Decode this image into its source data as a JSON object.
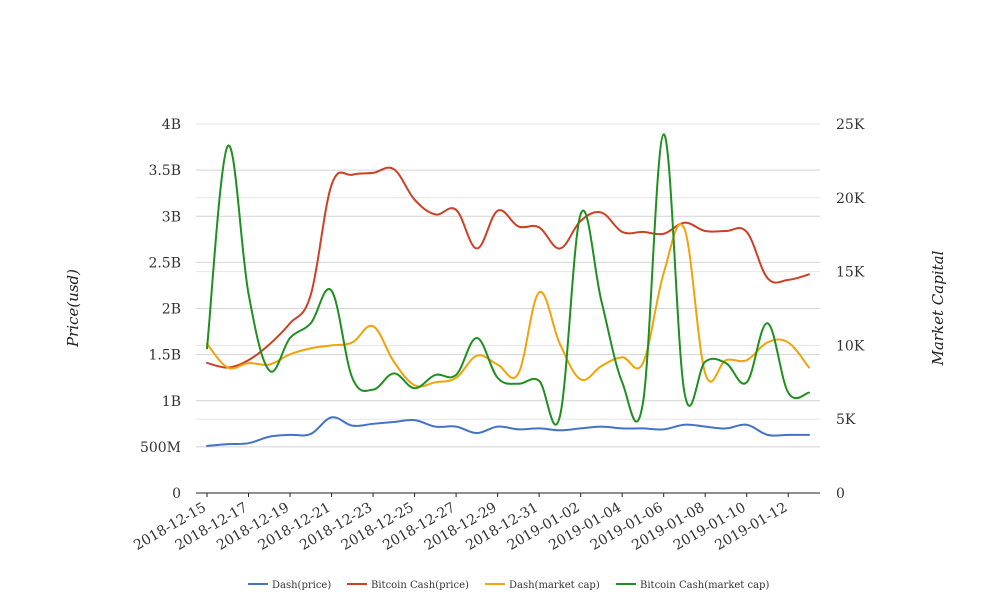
{
  "chart_data": {
    "type": "line",
    "title": "",
    "xlabel": "",
    "ylabel": "Price(usd)",
    "y2label": "Market Capital",
    "ylim": [
      0,
      4000000000
    ],
    "y2lim": [
      0,
      25000
    ],
    "yticks": [
      {
        "value": 0,
        "label": "0"
      },
      {
        "value": 500000000,
        "label": "500M"
      },
      {
        "value": 1000000000,
        "label": "1B"
      },
      {
        "value": 1500000000,
        "label": "1.5B"
      },
      {
        "value": 2000000000,
        "label": "2B"
      },
      {
        "value": 2500000000,
        "label": "2.5B"
      },
      {
        "value": 3000000000,
        "label": "3B"
      },
      {
        "value": 3500000000,
        "label": "3.5B"
      },
      {
        "value": 4000000000,
        "label": "4B"
      }
    ],
    "y2ticks": [
      {
        "value": 0,
        "label": "0"
      },
      {
        "value": 5000,
        "label": "5K"
      },
      {
        "value": 10000,
        "label": "10K"
      },
      {
        "value": 15000,
        "label": "15K"
      },
      {
        "value": 20000,
        "label": "20K"
      },
      {
        "value": 25000,
        "label": "25K"
      }
    ],
    "grid": true,
    "legend_position": "bottom",
    "categories": [
      "2018-12-15",
      "2018-12-16",
      "2018-12-17",
      "2018-12-18",
      "2018-12-19",
      "2018-12-20",
      "2018-12-21",
      "2018-12-22",
      "2018-12-23",
      "2018-12-24",
      "2018-12-25",
      "2018-12-26",
      "2018-12-27",
      "2018-12-28",
      "2018-12-29",
      "2018-12-30",
      "2018-12-31",
      "2019-01-01",
      "2019-01-02",
      "2019-01-03",
      "2019-01-04",
      "2019-01-05",
      "2019-01-06",
      "2019-01-07",
      "2019-01-08",
      "2019-01-09",
      "2019-01-10",
      "2019-01-11",
      "2019-01-12",
      "2019-01-13"
    ],
    "x_tick_labels": [
      "2018-12-15",
      "2018-12-17",
      "2018-12-19",
      "2018-12-21",
      "2018-12-23",
      "2018-12-25",
      "2018-12-27",
      "2018-12-29",
      "2018-12-31",
      "2019-01-02",
      "2019-01-04",
      "2019-01-06",
      "2019-01-08",
      "2019-01-10",
      "2019-01-12"
    ],
    "series": [
      {
        "name": "Dash(price)",
        "color": "#4472c4",
        "axis": "left",
        "values": [
          510000000,
          530000000,
          540000000,
          610000000,
          630000000,
          640000000,
          820000000,
          730000000,
          750000000,
          770000000,
          790000000,
          720000000,
          720000000,
          650000000,
          720000000,
          690000000,
          700000000,
          680000000,
          700000000,
          720000000,
          700000000,
          700000000,
          690000000,
          740000000,
          720000000,
          700000000,
          740000000,
          630000000,
          630000000,
          630000000
        ]
      },
      {
        "name": "Bitcoin Cash(price)",
        "color": "#cc4125",
        "axis": "left",
        "values": [
          1410000000,
          1360000000,
          1440000000,
          1610000000,
          1840000000,
          2150000000,
          3340000000,
          3450000000,
          3470000000,
          3510000000,
          3180000000,
          3020000000,
          3070000000,
          2650000000,
          3060000000,
          2890000000,
          2880000000,
          2650000000,
          2950000000,
          3040000000,
          2830000000,
          2830000000,
          2810000000,
          2930000000,
          2840000000,
          2840000000,
          2830000000,
          2330000000,
          2310000000,
          2370000000
        ]
      },
      {
        "name": "Dash(market cap)",
        "color": "#f0a30a",
        "axis": "right",
        "values": [
          10100,
          8500,
          8800,
          8700,
          9400,
          9800,
          10000,
          10200,
          11300,
          8900,
          7300,
          7500,
          7800,
          9300,
          8700,
          8100,
          13600,
          10100,
          7700,
          8600,
          9200,
          8800,
          14900,
          17900,
          8100,
          9000,
          9000,
          10200,
          10200,
          8500
        ]
      },
      {
        "name": "Bitcoin Cash(market cap)",
        "color": "#1f8f1f",
        "axis": "right",
        "values": [
          9800,
          23500,
          13500,
          8300,
          10500,
          11500,
          13700,
          7800,
          7000,
          8100,
          7100,
          8000,
          8000,
          10500,
          7800,
          7400,
          7600,
          5200,
          18900,
          13000,
          7500,
          6100,
          24300,
          6800,
          8900,
          8800,
          7500,
          11500,
          6800,
          6800
        ]
      }
    ]
  }
}
